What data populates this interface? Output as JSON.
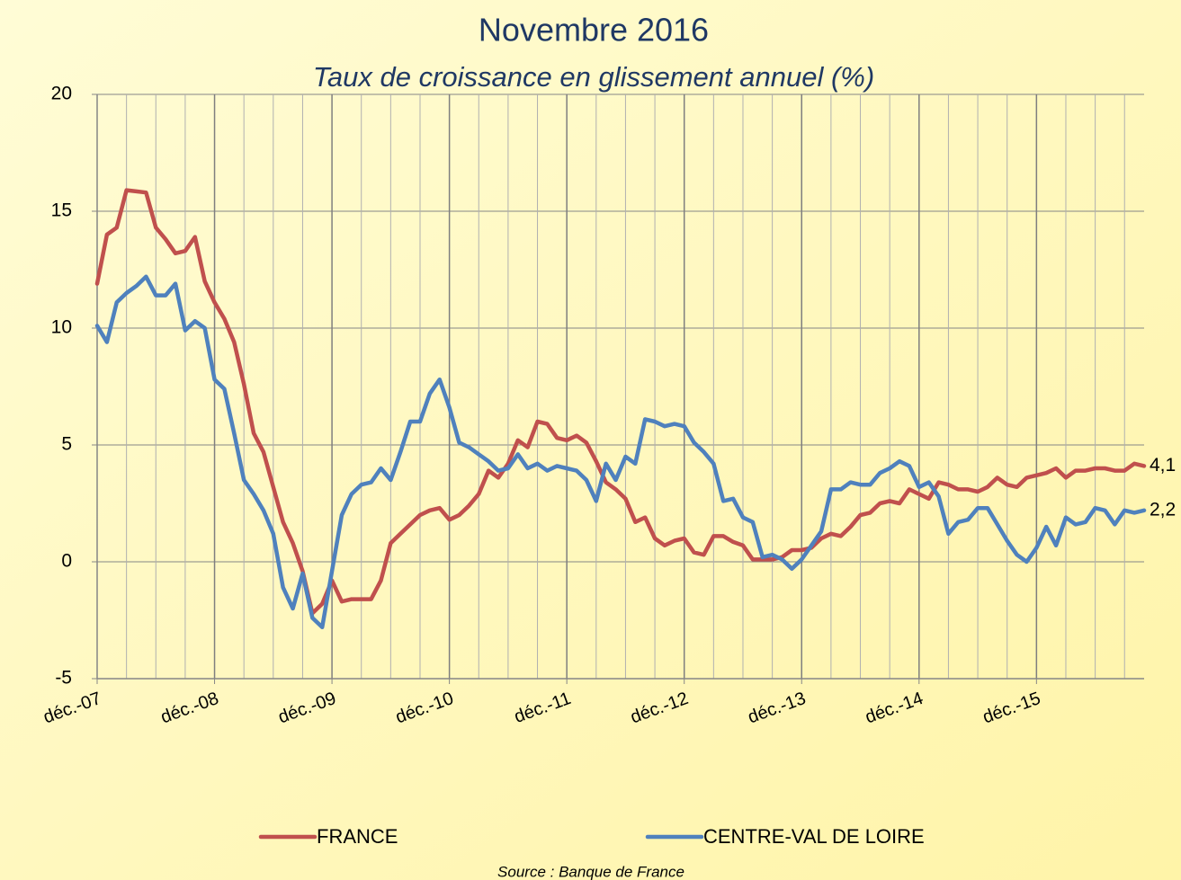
{
  "chart_data": {
    "type": "line",
    "title": "Novembre 2016",
    "subtitle": "Taux de croissance en glissement annuel (%)",
    "source": "Source : Banque de France",
    "categories": [
      "déc.-07",
      null,
      null,
      null,
      null,
      null,
      null,
      null,
      null,
      null,
      null,
      null,
      "déc.-08",
      null,
      null,
      null,
      null,
      null,
      null,
      null,
      null,
      null,
      null,
      null,
      "déc.-09",
      null,
      null,
      null,
      null,
      null,
      null,
      null,
      null,
      null,
      null,
      null,
      "déc.-10",
      null,
      null,
      null,
      null,
      null,
      null,
      null,
      null,
      null,
      null,
      null,
      "déc.-11",
      null,
      null,
      null,
      null,
      null,
      null,
      null,
      null,
      null,
      null,
      null,
      "déc.-12",
      null,
      null,
      null,
      null,
      null,
      null,
      null,
      null,
      null,
      null,
      null,
      "déc.-13",
      null,
      null,
      null,
      null,
      null,
      null,
      null,
      null,
      null,
      null,
      null,
      "déc.-14",
      null,
      null,
      null,
      null,
      null,
      null,
      null,
      null,
      null,
      null,
      null,
      "déc.-15",
      null,
      null,
      null,
      null,
      null,
      null,
      null,
      null,
      null,
      null,
      null
    ],
    "series": [
      {
        "name": "FRANCE",
        "color": "#c0504d",
        "values": [
          11.9,
          14.0,
          14.3,
          15.9,
          15.85,
          15.8,
          14.3,
          13.8,
          13.2,
          13.3,
          13.9,
          12.0,
          11.1,
          10.4,
          9.4,
          7.6,
          5.5,
          4.7,
          3.2,
          1.7,
          0.8,
          -0.4,
          -2.2,
          -1.8,
          -0.8,
          -1.7,
          -1.6,
          -1.6,
          -1.6,
          -0.8,
          0.8,
          1.2,
          1.6,
          2.0,
          2.2,
          2.3,
          1.8,
          2.0,
          2.4,
          2.9,
          3.9,
          3.6,
          4.2,
          5.2,
          4.9,
          6.0,
          5.9,
          5.3,
          5.2,
          5.4,
          5.1,
          4.3,
          3.4,
          3.1,
          2.7,
          1.7,
          1.9,
          1.0,
          0.7,
          0.9,
          1.0,
          0.4,
          0.3,
          1.1,
          1.1,
          0.85,
          0.7,
          0.1,
          0.1,
          0.1,
          0.2,
          0.5,
          0.5,
          0.6,
          1.0,
          1.2,
          1.1,
          1.5,
          2.0,
          2.1,
          2.5,
          2.6,
          2.5,
          3.1,
          2.9,
          2.7,
          3.4,
          3.3,
          3.1,
          3.1,
          3.0,
          3.2,
          3.6,
          3.3,
          3.2,
          3.6,
          3.7,
          3.8,
          4.0,
          3.6,
          3.9,
          3.9,
          4.0,
          4.0,
          3.9,
          3.9,
          4.2,
          4.1
        ],
        "value_labels": [
          null,
          null,
          null,
          null,
          null,
          null,
          null,
          null,
          null,
          null,
          null,
          null,
          null,
          null,
          null,
          null,
          null,
          null,
          null,
          null,
          null,
          null,
          null,
          null,
          null,
          null,
          null,
          null,
          null,
          null,
          null,
          null,
          null,
          null,
          null,
          null,
          null,
          null,
          null,
          null,
          null,
          null,
          null,
          null,
          null,
          null,
          null,
          null,
          null,
          null,
          null,
          null,
          null,
          null,
          null,
          null,
          null,
          null,
          null,
          null,
          null,
          null,
          null,
          null,
          null,
          null,
          null,
          null,
          null,
          null,
          null,
          null,
          null,
          null,
          null,
          null,
          null,
          null,
          null,
          null,
          null,
          null,
          null,
          null,
          null,
          null,
          null,
          null,
          null,
          null,
          null,
          null,
          null,
          null,
          null,
          null,
          null,
          null,
          null,
          null,
          null,
          null,
          null,
          null,
          null,
          null,
          null,
          "4,1"
        ]
      },
      {
        "name": "CENTRE-VAL DE LOIRE",
        "color": "#4f81bd",
        "values": [
          10.1,
          9.4,
          11.1,
          11.5,
          11.8,
          12.2,
          11.4,
          11.4,
          11.9,
          9.9,
          10.3,
          10.0,
          7.8,
          7.4,
          5.5,
          3.5,
          2.9,
          2.2,
          1.2,
          -1.1,
          -2.0,
          -0.5,
          -2.4,
          -2.8,
          -0.4,
          2.0,
          2.9,
          3.3,
          3.4,
          4.0,
          3.5,
          4.7,
          6.0,
          6.0,
          7.2,
          7.8,
          6.6,
          5.1,
          4.9,
          4.6,
          4.3,
          3.9,
          4.0,
          4.6,
          4.0,
          4.2,
          3.9,
          4.1,
          4.0,
          3.9,
          3.5,
          2.6,
          4.2,
          3.5,
          4.5,
          4.2,
          6.1,
          6.0,
          5.8,
          5.9,
          5.8,
          5.1,
          4.7,
          4.2,
          2.6,
          2.7,
          1.9,
          1.7,
          0.2,
          0.3,
          0.1,
          -0.3,
          0.1,
          0.7,
          1.3,
          3.1,
          3.1,
          3.4,
          3.3,
          3.3,
          3.8,
          4.0,
          4.3,
          4.1,
          3.2,
          3.4,
          2.8,
          1.2,
          1.7,
          1.8,
          2.3,
          2.3,
          1.6,
          0.9,
          0.3,
          0.0,
          0.6,
          1.5,
          0.7,
          1.9,
          1.6,
          1.7,
          2.3,
          2.2,
          1.6,
          2.2,
          2.1,
          2.2
        ],
        "value_labels": [
          null,
          null,
          null,
          null,
          null,
          null,
          null,
          null,
          null,
          null,
          null,
          null,
          null,
          null,
          null,
          null,
          null,
          null,
          null,
          null,
          null,
          null,
          null,
          null,
          null,
          null,
          null,
          null,
          null,
          null,
          null,
          null,
          null,
          null,
          null,
          null,
          null,
          null,
          null,
          null,
          null,
          null,
          null,
          null,
          null,
          null,
          null,
          null,
          null,
          null,
          null,
          null,
          null,
          null,
          null,
          null,
          null,
          null,
          null,
          null,
          null,
          null,
          null,
          null,
          null,
          null,
          null,
          null,
          null,
          null,
          null,
          null,
          null,
          null,
          null,
          null,
          null,
          null,
          null,
          null,
          null,
          null,
          null,
          null,
          null,
          null,
          null,
          null,
          null,
          null,
          null,
          null,
          null,
          null,
          null,
          null,
          null,
          null,
          null,
          null,
          null,
          null,
          null,
          null,
          null,
          null,
          null,
          "2,2"
        ]
      }
    ],
    "ylim": [
      -5,
      20
    ],
    "yticks": [
      -5,
      0,
      5,
      10,
      15,
      20
    ],
    "grid": true,
    "legend": "bottom"
  }
}
